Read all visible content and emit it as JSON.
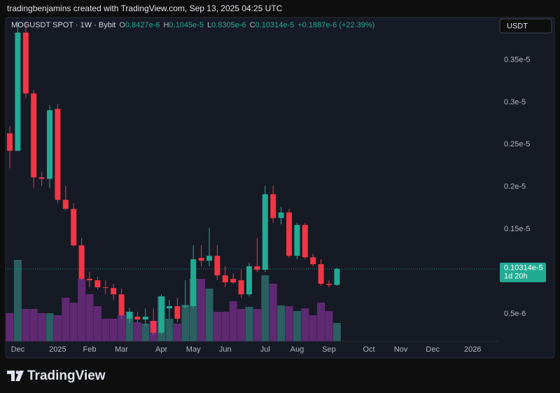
{
  "header": {
    "attribution": "tradingbenjamins created with TradingView.com, Sep 13, 2025 04:25 UTC"
  },
  "chart_data": {
    "type": "candlestick",
    "title": "MOGUSDT SPOT · 1W · Bybit",
    "legend_values": [
      {
        "label": "O",
        "value": "0.8427e-6"
      },
      {
        "label": "H",
        "value": "0.1045e-5"
      },
      {
        "label": "L",
        "value": "0.8305e-6"
      },
      {
        "label": "C",
        "value": "0.10314e-5"
      }
    ],
    "change": "+0.1887e-6 (+22.39%)",
    "currency": "USDT",
    "last_price": {
      "value": 1.0314e-06,
      "label": "0.10314e-5"
    },
    "countdown": "1d 20h",
    "categories": [
      null,
      "Dec",
      null,
      null,
      null,
      null,
      "2025",
      null,
      null,
      null,
      "Feb",
      null,
      null,
      null,
      "Mar",
      null,
      null,
      null,
      null,
      "Apr",
      null,
      null,
      null,
      "May",
      null,
      null,
      null,
      "Jun",
      null,
      null,
      null,
      null,
      "Jul",
      null,
      null,
      null,
      "Aug",
      null,
      null,
      null,
      "Sep",
      null,
      null,
      null,
      null,
      "Oct",
      null,
      null,
      null,
      "Nov",
      null,
      null,
      null,
      "Dec",
      null,
      null,
      null,
      null,
      "2026",
      null,
      null,
      null
    ],
    "open": [
      2.632e-06,
      2.426e-06,
      3.822e-06,
      3.103e-06,
      2.112e-06,
      2.095e-06,
      2.921e-06,
      1.847e-06,
      1.74e-06,
      1.31e-06,
      9.13e-07,
      8.97e-07,
      8.14e-07,
      8.06e-07,
      7.31e-07,
      4.42e-07,
      4.67e-07,
      4.34e-07,
      4.17e-07,
      2.77e-07,
      5.66e-07,
      5.91e-07,
      5.83e-07,
      5.91e-07,
      1.161e-06,
      1.128e-06,
      1.186e-06,
      9.55e-07,
      9.13e-07,
      8.97e-07,
      7.31e-07,
      1.062e-06,
      1.021e-06,
      1.913e-06,
      1.632e-06,
      1.698e-06,
      1.186e-06,
      1.55e-06,
      1.169e-06,
      1.087e-06,
      8.55e-07,
      8.427e-07,
      null,
      null,
      null,
      null,
      null,
      null,
      null,
      null,
      null,
      null,
      null,
      null,
      null,
      null,
      null,
      null,
      null,
      null,
      null,
      null
    ],
    "high": [
      2.715e-06,
      3.955e-06,
      3.955e-06,
      3.145e-06,
      2.178e-06,
      2.963e-06,
      2.979e-06,
      2.012e-06,
      1.806e-06,
      1.393e-06,
      9.96e-07,
      9.38e-07,
      8.97e-07,
      8.55e-07,
      7.98e-07,
      5.66e-07,
      5.25e-07,
      5.66e-07,
      5.66e-07,
      7.31e-07,
      6.65e-07,
      6.9e-07,
      8.97e-07,
      1.31e-06,
      1.31e-06,
      1.517e-06,
      1.31e-06,
      1.062e-06,
      9.79e-07,
      1.021e-06,
      1.103e-06,
      1.393e-06,
      2.012e-06,
      2.012e-06,
      1.764e-06,
      1.74e-06,
      1.574e-06,
      1.574e-06,
      1.211e-06,
      1.145e-06,
      8.97e-07,
      1.045e-06,
      null,
      null,
      null,
      null,
      null,
      null,
      null,
      null,
      null,
      null,
      null,
      null,
      null,
      null,
      null,
      null,
      null,
      null,
      null,
      null
    ],
    "low": [
      2.219e-06,
      2.426e-06,
      3.045e-06,
      1.988e-06,
      2.012e-06,
      1.988e-06,
      1.806e-06,
      1.723e-06,
      1.293e-06,
      8.97e-07,
      8.14e-07,
      7.89e-07,
      7.31e-07,
      6.65e-07,
      4.42e-07,
      3.84e-07,
      4.01e-07,
      3.6e-07,
      2.52e-07,
      2.52e-07,
      4.42e-07,
      4.01e-07,
      5.66e-07,
      5.66e-07,
      1.062e-06,
      1.062e-06,
      8.97e-07,
      8.14e-07,
      8.55e-07,
      6.9e-07,
      7.07e-07,
      9.96e-07,
      9.96e-07,
      1.574e-06,
      1.558e-06,
      1.161e-06,
      1.145e-06,
      1.145e-06,
      1.062e-06,
      8.31e-07,
      8.14e-07,
      8.305e-07,
      null,
      null,
      null,
      null,
      null,
      null,
      null,
      null,
      null,
      null,
      null,
      null,
      null,
      null,
      null,
      null,
      null,
      null,
      null,
      null
    ],
    "close": [
      2.426e-06,
      3.822e-06,
      3.103e-06,
      2.112e-06,
      2.095e-06,
      2.905e-06,
      1.847e-06,
      1.74e-06,
      1.31e-06,
      9.13e-07,
      8.97e-07,
      8.14e-07,
      8.06e-07,
      7.31e-07,
      4.83e-07,
      5.25e-07,
      4.34e-07,
      4.67e-07,
      2.77e-07,
      7.07e-07,
      5.91e-07,
      4.42e-07,
      5.91e-07,
      1.145e-06,
      1.128e-06,
      1.186e-06,
      9.55e-07,
      8.72e-07,
      8.72e-07,
      7.31e-07,
      1.062e-06,
      1.021e-06,
      1.913e-06,
      1.632e-06,
      1.698e-06,
      1.186e-06,
      1.55e-06,
      1.169e-06,
      1.087e-06,
      8.55e-07,
      8.427e-07,
      1.0314e-06,
      null,
      null,
      null,
      null,
      null,
      null,
      null,
      null,
      null,
      null,
      null,
      null,
      null,
      null,
      null,
      null,
      null,
      null,
      null,
      null
    ],
    "volume": [
      40,
      116,
      46,
      46,
      40,
      40,
      37,
      62,
      55,
      89,
      67,
      50,
      32,
      32,
      37,
      42,
      27,
      25,
      29,
      64,
      32,
      25,
      52,
      89,
      89,
      75,
      42,
      42,
      57,
      46,
      49,
      46,
      94,
      82,
      51,
      50,
      43,
      47,
      37,
      55,
      43,
      26,
      null,
      null,
      null,
      null,
      null,
      null,
      null,
      null,
      null,
      null,
      null,
      null,
      null,
      null,
      null,
      null,
      null,
      null,
      null,
      null
    ],
    "up_color": "#22ab94",
    "down_color": "#f23645",
    "volume_up_color": "#2b5f61",
    "volume_down_color": "#5f2a72",
    "ylim": [
      1.78e-07,
      4e-06
    ],
    "yticks": [
      {
        "value": 5e-07,
        "label": "0.5e-6"
      },
      {
        "value": 1.5e-06,
        "label": "0.15e-5"
      },
      {
        "value": 2e-06,
        "label": "0.2e-5"
      },
      {
        "value": 2.5e-06,
        "label": "0.25e-5"
      },
      {
        "value": 3e-06,
        "label": "0.3e-5"
      },
      {
        "value": 3.5e-06,
        "label": "0.35e-5"
      }
    ],
    "grid": false
  },
  "footer": {
    "brand": "TradingView"
  }
}
